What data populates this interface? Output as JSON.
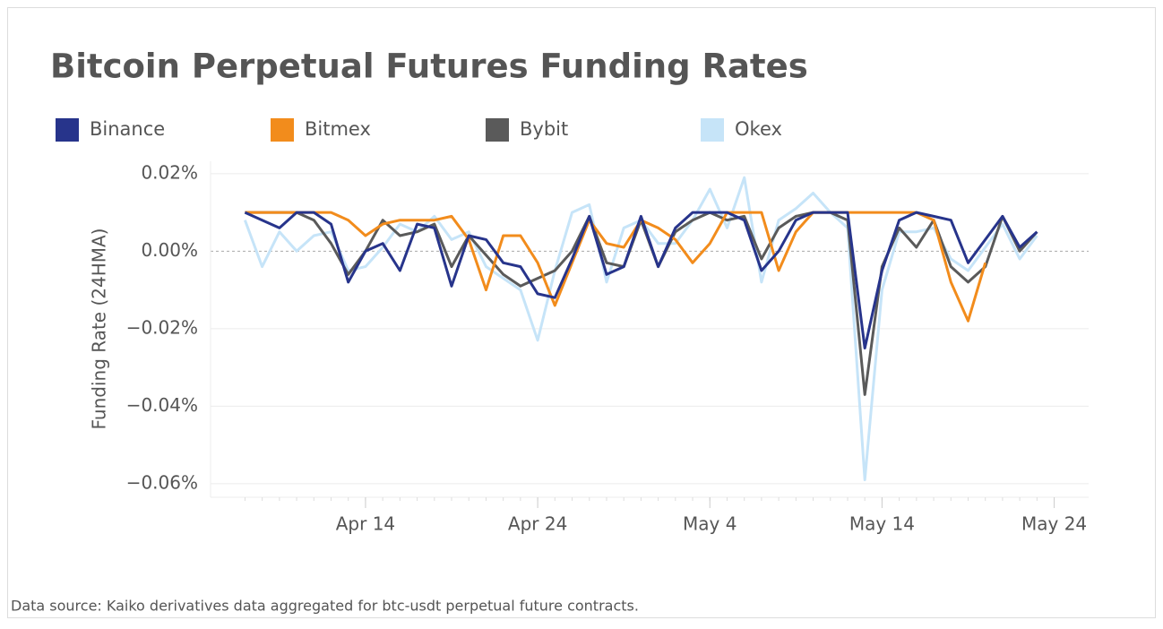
{
  "chart_data": {
    "type": "line",
    "title": "Bitcoin Perpetual Futures Funding Rates",
    "y_label": "Funding Rate (24HMA)",
    "source": "Data source: Kaiko derivatives data aggregated for btc-usdt perpetual future contracts.",
    "legend": "top",
    "grid": true,
    "x": [
      "Apr 7",
      "Apr 8",
      "Apr 9",
      "Apr 10",
      "Apr 11",
      "Apr 12",
      "Apr 13",
      "Apr 14",
      "Apr 15",
      "Apr 16",
      "Apr 17",
      "Apr 18",
      "Apr 19",
      "Apr 20",
      "Apr 21",
      "Apr 22",
      "Apr 23",
      "Apr 24",
      "Apr 25",
      "Apr 26",
      "Apr 27",
      "Apr 28",
      "Apr 29",
      "Apr 30",
      "May 1",
      "May 2",
      "May 3",
      "May 4",
      "May 5",
      "May 6",
      "May 7",
      "May 8",
      "May 9",
      "May 10",
      "May 11",
      "May 12",
      "May 13",
      "May 14",
      "May 15",
      "May 16",
      "May 17",
      "May 18",
      "May 19",
      "May 20",
      "May 21",
      "May 22",
      "May 23"
    ],
    "xlim": [
      "Apr 5",
      "May 26"
    ],
    "xticks": [
      "Apr 14",
      "Apr 24",
      "May 4",
      "May 14",
      "May 24"
    ],
    "ylim": [
      -0.0635,
      0.0232
    ],
    "yticks": [
      {
        "value": 0.02,
        "label": "0.02%"
      },
      {
        "value": 0,
        "label": "0.00%"
      },
      {
        "value": -0.02,
        "label": "−0.02%"
      },
      {
        "value": -0.04,
        "label": "−0.04%"
      },
      {
        "value": -0.06,
        "label": "−0.06%"
      }
    ],
    "series": [
      {
        "name": "Okex",
        "color": "#c6e4f8",
        "values": [
          0.008,
          -0.004,
          0.005,
          0.0,
          0.004,
          0.005,
          -0.005,
          -0.004,
          0.001,
          0.007,
          0.005,
          0.009,
          0.003,
          0.005,
          -0.004,
          -0.007,
          -0.01,
          -0.023,
          -0.005,
          0.01,
          0.012,
          -0.008,
          0.006,
          0.008,
          0.002,
          0.002,
          0.008,
          0.016,
          0.006,
          0.019,
          -0.008,
          0.008,
          0.011,
          0.015,
          0.01,
          0.006,
          -0.059,
          -0.01,
          0.005,
          0.005,
          0.006,
          -0.002,
          -0.005,
          0.001,
          0.007,
          -0.002,
          0.004
        ]
      },
      {
        "name": "Bybit",
        "color": "#5a5a5a",
        "values": [
          0.01,
          0.01,
          0.01,
          0.01,
          0.008,
          0.002,
          -0.006,
          0.0,
          0.008,
          0.004,
          0.005,
          0.007,
          -0.004,
          0.004,
          -0.001,
          -0.006,
          -0.009,
          -0.007,
          -0.005,
          0.0,
          0.009,
          -0.003,
          -0.004,
          0.008,
          -0.004,
          0.005,
          0.008,
          0.01,
          0.008,
          0.009,
          -0.002,
          0.006,
          0.009,
          0.01,
          0.01,
          0.008,
          -0.037,
          -0.004,
          0.006,
          0.001,
          0.008,
          -0.004,
          -0.008,
          -0.004,
          0.009,
          0.0,
          0.005
        ]
      },
      {
        "name": "Bitmex",
        "color": "#f28c1c",
        "values": [
          0.01,
          0.01,
          0.01,
          0.01,
          0.01,
          0.01,
          0.008,
          0.004,
          0.007,
          0.008,
          0.008,
          0.008,
          0.009,
          0.003,
          -0.01,
          0.004,
          0.004,
          -0.003,
          -0.014,
          -0.003,
          0.008,
          0.002,
          0.001,
          0.008,
          0.006,
          0.003,
          -0.003,
          0.002,
          0.01,
          0.01,
          0.01,
          -0.005,
          0.005,
          0.01,
          0.01,
          0.01,
          0.01,
          0.01,
          0.01,
          0.01,
          0.008,
          -0.008,
          -0.018,
          -0.003,
          null,
          null,
          null
        ]
      },
      {
        "name": "Binance",
        "color": "#27348b",
        "values": [
          0.01,
          0.008,
          0.006,
          0.01,
          0.01,
          0.007,
          -0.008,
          0.0,
          0.002,
          -0.005,
          0.007,
          0.006,
          -0.009,
          0.004,
          0.003,
          -0.003,
          -0.004,
          -0.011,
          -0.012,
          -0.002,
          0.009,
          -0.006,
          -0.004,
          0.009,
          -0.004,
          0.006,
          0.01,
          0.01,
          0.01,
          0.008,
          -0.005,
          0.0,
          0.008,
          0.01,
          0.01,
          0.01,
          -0.025,
          -0.005,
          0.008,
          0.01,
          0.009,
          0.008,
          -0.003,
          0.003,
          0.009,
          0.001,
          0.005
        ]
      }
    ],
    "legend_order": [
      3,
      2,
      1,
      0
    ]
  }
}
